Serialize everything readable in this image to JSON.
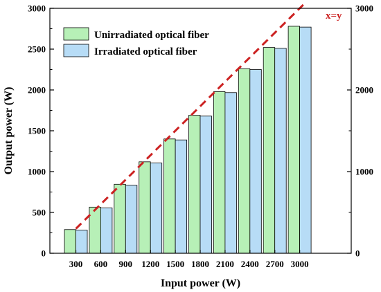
{
  "chart_data": {
    "type": "bar",
    "xlabel": "Input power (W)",
    "ylabel": "Output power (W)",
    "categories": [
      "300",
      "600",
      "900",
      "1200",
      "1500",
      "1800",
      "2100",
      "2400",
      "2700",
      "3000"
    ],
    "series": [
      {
        "name": "Unirradiated optical fiber",
        "color": "#b7f0b7",
        "values": [
          290,
          565,
          845,
          1120,
          1400,
          1690,
          1980,
          2260,
          2520,
          2780
        ]
      },
      {
        "name": "Irradiated optical fiber",
        "color": "#b7dcf6",
        "values": [
          283,
          555,
          833,
          1105,
          1388,
          1680,
          1968,
          2250,
          2510,
          2770
        ]
      }
    ],
    "ylim": [
      0,
      3000
    ],
    "yticks": [
      "0",
      "500",
      "1000",
      "1500",
      "2000",
      "2500",
      "3000"
    ],
    "right_axis": {
      "ylim": [
        0,
        3000
      ],
      "ticks": [
        "0",
        "1000",
        "2000",
        "3000"
      ]
    },
    "reference_line": {
      "label": "x=y",
      "color": "#cc2222",
      "style": "dashed",
      "from": [
        300,
        300
      ],
      "to": [
        3000,
        3000
      ]
    },
    "legend_position": "top-left",
    "grid": false
  }
}
